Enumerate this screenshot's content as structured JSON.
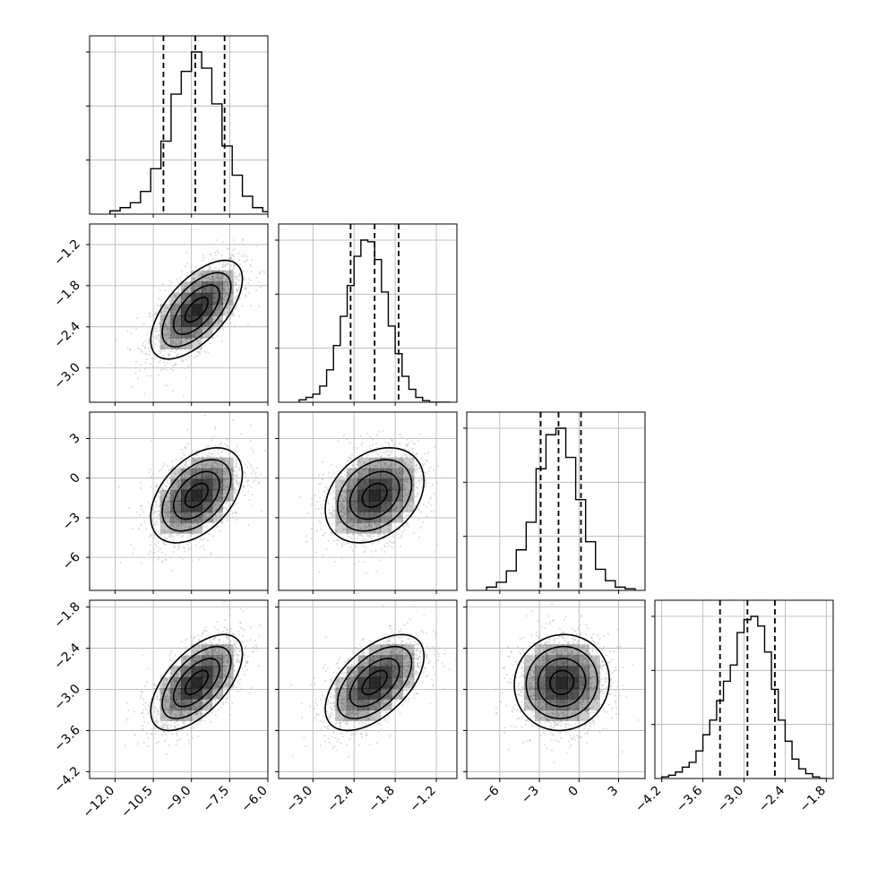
{
  "chart_data": {
    "type": "corner",
    "params": [
      {
        "range": [
          -13.0,
          -6.0
        ],
        "ticks": [
          "−12.0",
          "−10.5",
          "−9.0",
          "−7.5",
          "−6.0"
        ],
        "tick_values": [
          -12.0,
          -10.5,
          -9.0,
          -7.5,
          -6.0
        ]
      },
      {
        "range": [
          -3.5,
          -0.9
        ],
        "ticks": [
          "−3.0",
          "−2.4",
          "−1.8",
          "−1.2"
        ],
        "tick_values": [
          -3.0,
          -2.4,
          -1.8,
          -1.2
        ]
      },
      {
        "range": [
          -8.5,
          5.0
        ],
        "ticks": [
          "−6",
          "−3",
          "0",
          "3"
        ],
        "tick_values": [
          -6,
          -3,
          0,
          3
        ]
      },
      {
        "range": [
          -4.3,
          -1.7
        ],
        "ticks": [
          "−4.2",
          "−3.6",
          "−3.0",
          "−2.4",
          "−1.8"
        ],
        "tick_values": [
          -4.2,
          -3.6,
          -3.0,
          -2.4,
          -1.8
        ]
      }
    ],
    "histograms": [
      {
        "param": 0,
        "bins": [
          -12.2,
          -11.8,
          -11.4,
          -11.0,
          -10.6,
          -10.2,
          -9.8,
          -9.4,
          -9.0,
          -8.6,
          -8.2,
          -7.8,
          -7.4,
          -7.0,
          -6.6,
          -6.2
        ],
        "counts": [
          0.02,
          0.04,
          0.07,
          0.14,
          0.28,
          0.45,
          0.74,
          0.88,
          1.0,
          0.9,
          0.68,
          0.42,
          0.24,
          0.11,
          0.04,
          0.015
        ],
        "quantiles": [
          -10.1,
          -8.85,
          -7.7
        ]
      },
      {
        "param": 1,
        "bins": [
          -3.2,
          -3.1,
          -3.0,
          -2.9,
          -2.8,
          -2.7,
          -2.6,
          -2.5,
          -2.4,
          -2.3,
          -2.2,
          -2.1,
          -2.0,
          -1.9,
          -1.8,
          -1.7,
          -1.6,
          -1.5,
          -1.4,
          -1.3,
          -1.2,
          -1.1
        ],
        "counts": [
          0.015,
          0.03,
          0.05,
          0.1,
          0.2,
          0.35,
          0.53,
          0.72,
          0.9,
          1.0,
          0.99,
          0.88,
          0.68,
          0.47,
          0.3,
          0.16,
          0.08,
          0.03,
          0.01,
          0.0,
          0.0,
          0.0
        ],
        "quantiles": [
          -2.45,
          -2.1,
          -1.75
        ]
      },
      {
        "param": 2,
        "bins": [
          -7.0,
          -6.25,
          -5.5,
          -4.75,
          -4.0,
          -3.25,
          -2.5,
          -1.75,
          -1.0,
          -0.25,
          0.5,
          1.25,
          2.0,
          2.75,
          3.5
        ],
        "counts": [
          0.02,
          0.05,
          0.12,
          0.25,
          0.42,
          0.75,
          0.96,
          1.0,
          0.82,
          0.56,
          0.3,
          0.13,
          0.06,
          0.02,
          0.01
        ],
        "quantiles": [
          -2.9,
          -1.55,
          0.15
        ]
      },
      {
        "param": 3,
        "bins": [
          -4.2,
          -4.1,
          -4.0,
          -3.9,
          -3.8,
          -3.7,
          -3.6,
          -3.5,
          -3.4,
          -3.3,
          -3.2,
          -3.1,
          -3.0,
          -2.9,
          -2.8,
          -2.7,
          -2.6,
          -2.5,
          -2.4,
          -2.3,
          -2.2,
          -2.1,
          -2.0,
          -1.9
        ],
        "counts": [
          0.01,
          0.02,
          0.04,
          0.07,
          0.1,
          0.17,
          0.27,
          0.36,
          0.48,
          0.6,
          0.7,
          0.9,
          0.98,
          1.0,
          0.94,
          0.78,
          0.55,
          0.36,
          0.23,
          0.12,
          0.06,
          0.03,
          0.01,
          0.0
        ],
        "quantiles": [
          -3.35,
          -2.95,
          -2.55
        ]
      }
    ],
    "pairs": [
      {
        "x": 0,
        "y": 1,
        "center": [
          -8.8,
          -2.15
        ],
        "sd": [
          0.9,
          0.36
        ],
        "rho": 0.62
      },
      {
        "x": 0,
        "y": 2,
        "center": [
          -8.8,
          -1.3
        ],
        "sd": [
          0.9,
          1.8
        ],
        "rho": 0.45
      },
      {
        "x": 1,
        "y": 2,
        "center": [
          -2.1,
          -1.3
        ],
        "sd": [
          0.36,
          1.8
        ],
        "rho": 0.3
      },
      {
        "x": 0,
        "y": 3,
        "center": [
          -8.8,
          -2.9
        ],
        "sd": [
          0.9,
          0.35
        ],
        "rho": 0.6
      },
      {
        "x": 1,
        "y": 3,
        "center": [
          -2.1,
          -2.9
        ],
        "sd": [
          0.36,
          0.35
        ],
        "rho": 0.55
      },
      {
        "x": 2,
        "y": 3,
        "center": [
          -1.3,
          -2.9
        ],
        "sd": [
          1.8,
          0.35
        ],
        "rho": 0.05
      }
    ],
    "hist_grid_ticks": 3,
    "contour_levels": 4,
    "grid": true,
    "colors": {
      "line": "#000000",
      "grid": "#b0b0b0",
      "scatter": "#bdbdbd",
      "density": "#000000"
    }
  }
}
